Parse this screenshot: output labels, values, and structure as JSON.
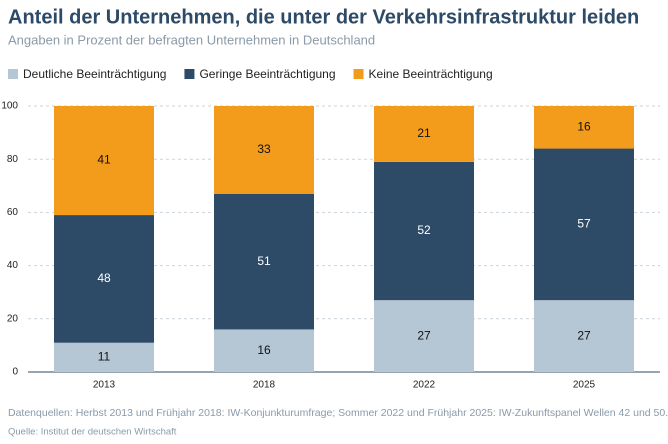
{
  "chart_data": {
    "type": "stacked_bar",
    "title": "Anteil der Unternehmen, die unter der Verkehrsinfrastruktur leiden",
    "subtitle": "Angaben in Prozent der befragten Unternehmen in Deutschland",
    "categories": [
      "2013",
      "2018",
      "2022",
      "2025"
    ],
    "series": [
      {
        "name": "Deutliche Beeinträchtigung",
        "color": "#b5c7d5",
        "values": [
          11,
          16,
          27,
          27
        ]
      },
      {
        "name": "Geringe Beeinträchtigung",
        "color": "#2d4a66",
        "values": [
          48,
          51,
          52,
          57
        ]
      },
      {
        "name": "Keine Beeinträchtigung",
        "color": "#f39c1b",
        "values": [
          41,
          33,
          21,
          16
        ]
      }
    ],
    "ylim": [
      0,
      100
    ],
    "yticks": [
      0,
      20,
      40,
      60,
      80,
      100
    ],
    "grid": true,
    "legend": "top-left",
    "note": "Datenquellen: Herbst 2013 und Frühjahr 2018: IW-Konjunkturumfrage; Sommer 2022 und Frühjahr 2025: IW-Zukunftspanel Wellen 42 und 50.",
    "source": "Quelle: Institut der deutschen Wirtschaft"
  }
}
